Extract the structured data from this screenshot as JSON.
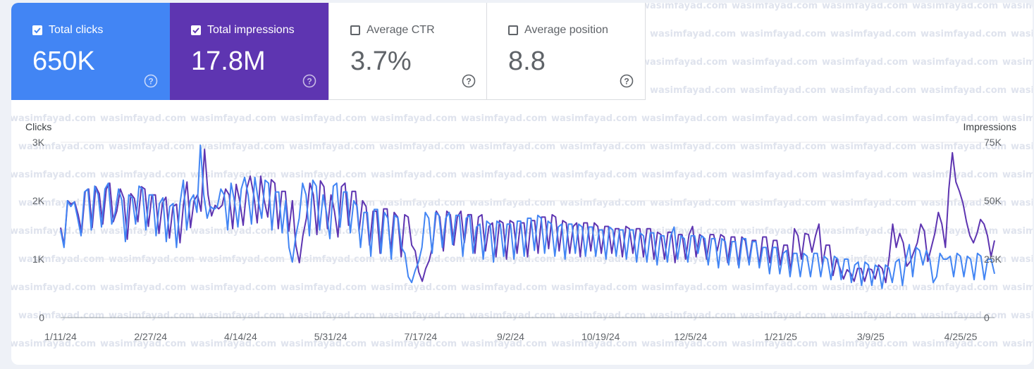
{
  "metrics": {
    "clicks": {
      "label": "Total clicks",
      "value": "650K",
      "checked": true,
      "color": "#4285f4"
    },
    "impressions": {
      "label": "Total impressions",
      "value": "17.8M",
      "checked": true,
      "color": "#5e35b1"
    },
    "ctr": {
      "label": "Average CTR",
      "value": "3.7%",
      "checked": false
    },
    "position": {
      "label": "Average position",
      "value": "8.8",
      "checked": false
    }
  },
  "watermark": "wasimfayad.com",
  "chart_data": {
    "type": "line",
    "ylabel_left": "Clicks",
    "ylabel_right": "Impressions",
    "yticks_left": [
      "0",
      "1K",
      "2K",
      "3K"
    ],
    "yticks_right": [
      "0",
      "25K",
      "50K",
      "75K"
    ],
    "ylim_left": [
      0,
      3000
    ],
    "ylim_right": [
      0,
      75000
    ],
    "xticks": [
      "1/11/24",
      "2/27/24",
      "4/14/24",
      "5/31/24",
      "7/17/24",
      "9/2/24",
      "10/19/24",
      "12/5/24",
      "1/21/25",
      "3/9/25",
      "4/25/25"
    ],
    "x_start": "1/11/24",
    "x_end": "5/16/25",
    "grid": true,
    "series": [
      {
        "name": "Clicks",
        "axis": "left",
        "color": "#4285f4",
        "values": [
          1500,
          1200,
          2000,
          1900,
          1980,
          1700,
          1400,
          2150,
          2200,
          1500,
          2250,
          2100,
          1550,
          2200,
          2300,
          1600,
          1800,
          2200,
          2000,
          1300,
          2100,
          2050,
          1600,
          2250,
          2200,
          1500,
          2100,
          2100,
          1400,
          1950,
          2050,
          1300,
          1900,
          1950,
          1200,
          1950,
          2350,
          1500,
          2000,
          2100,
          1800,
          2950,
          2100,
          1700,
          1900,
          1850,
          1900,
          2200,
          2100,
          1500,
          2300,
          2000,
          1550,
          2200,
          2400,
          2100,
          1600,
          2400,
          2000,
          1700,
          2350,
          2300,
          1500,
          2150,
          2150,
          1450,
          2000,
          1200,
          950,
          1400,
          1700,
          2300,
          2100,
          1400,
          2350,
          2250,
          1500,
          2100,
          1800,
          1350,
          2250,
          2300,
          1550,
          2150,
          2150,
          1450,
          2000,
          1900,
          1200,
          1800,
          1800,
          1050,
          1850,
          1850,
          1100,
          1800,
          1700,
          1000,
          1750,
          1700,
          1200,
          1100,
          700,
          600,
          800,
          950,
          1200,
          1800,
          1700,
          1100,
          1800,
          1750,
          1200,
          1700,
          1800,
          1250,
          1750,
          1750,
          1050,
          1700,
          1750,
          1100,
          1550,
          1600,
          1000,
          1650,
          1600,
          950,
          1650,
          1600,
          1050,
          1600,
          1600,
          1000,
          1650,
          1650,
          1050,
          1700,
          1700,
          1150,
          1750,
          1700,
          1100,
          1650,
          1600,
          1050,
          1550,
          1600,
          1000,
          1600,
          1600,
          1100,
          1600,
          1550,
          1050,
          1550,
          1550,
          1050,
          1500,
          1500,
          1000,
          1550,
          1500,
          1050,
          1500,
          1500,
          1000,
          1500,
          1500,
          950,
          1450,
          1400,
          950,
          1450,
          1450,
          900,
          1400,
          1400,
          950,
          1400,
          1550,
          1000,
          1400,
          1350,
          950,
          1400,
          1400,
          1100,
          1400,
          1350,
          900,
          1350,
          1350,
          850,
          1350,
          1300,
          900,
          1300,
          1300,
          850,
          1350,
          1350,
          900,
          1300,
          1300,
          850,
          1200,
          1200,
          750,
          1200,
          1200,
          750,
          1100,
          1150,
          700,
          1100,
          1100,
          700,
          1100,
          1050,
          700,
          1100,
          1100,
          700,
          1050,
          1000,
          650,
          1050,
          1000,
          650,
          1000,
          1000,
          600,
          900,
          950,
          550,
          950,
          900,
          550,
          900,
          850,
          500,
          900,
          850,
          600,
          950,
          1000,
          550,
          1000,
          1250,
          700,
          1200,
          1150,
          900,
          1150,
          1000,
          600,
          700,
          1100,
          1000,
          1000,
          1050,
          700,
          1100,
          1050,
          700,
          1050,
          1000,
          650,
          1100,
          1050,
          650,
          1000,
          1000,
          750
        ]
      },
      {
        "name": "Impressions",
        "axis": "right",
        "color": "#5e35b1",
        "values": [
          38500,
          31000,
          50000,
          48500,
          49500,
          44000,
          36500,
          54000,
          55000,
          38500,
          56000,
          53000,
          40000,
          55000,
          57500,
          41000,
          45500,
          55000,
          51000,
          33500,
          53000,
          51000,
          41000,
          56000,
          55000,
          39000,
          52500,
          52500,
          36000,
          49000,
          51500,
          34000,
          47500,
          48500,
          32000,
          48500,
          58000,
          38500,
          50000,
          52500,
          45500,
          72000,
          52500,
          43500,
          48000,
          46500,
          48000,
          55000,
          52500,
          38000,
          57000,
          50000,
          39500,
          55000,
          60500,
          52500,
          40500,
          60500,
          50000,
          43000,
          59000,
          57500,
          38000,
          54000,
          54000,
          37000,
          50000,
          31000,
          23500,
          35000,
          42500,
          57500,
          52500,
          35500,
          58500,
          56000,
          38000,
          52500,
          45500,
          34500,
          56000,
          57500,
          39500,
          54000,
          54000,
          37000,
          50000,
          47500,
          31000,
          45500,
          45500,
          27500,
          46500,
          46500,
          28500,
          45000,
          43000,
          26000,
          44000,
          43000,
          31000,
          28500,
          19500,
          15500,
          21000,
          24500,
          31000,
          45500,
          43000,
          28500,
          45500,
          44000,
          31000,
          43000,
          45500,
          32000,
          44000,
          44000,
          27500,
          43000,
          44000,
          28500,
          39000,
          40500,
          26000,
          41500,
          40500,
          25000,
          41500,
          40500,
          27500,
          40500,
          40500,
          26000,
          41500,
          41500,
          27500,
          43000,
          43000,
          29500,
          44000,
          43000,
          28500,
          41500,
          40500,
          27500,
          39000,
          40500,
          26000,
          40500,
          40500,
          28500,
          40500,
          39000,
          27500,
          39000,
          39000,
          27500,
          38000,
          38000,
          26000,
          39000,
          38000,
          27500,
          38000,
          38000,
          26000,
          38000,
          38000,
          25000,
          36500,
          35500,
          25000,
          36500,
          36500,
          23500,
          35500,
          35500,
          25000,
          35500,
          39000,
          26000,
          35500,
          34500,
          25000,
          35500,
          35500,
          28500,
          35500,
          34500,
          23500,
          34500,
          34500,
          22500,
          34500,
          33000,
          23500,
          33000,
          33000,
          22500,
          34500,
          34500,
          23500,
          33000,
          33000,
          22500,
          31000,
          31000,
          20000,
          38000,
          35000,
          25000,
          36000,
          35500,
          28000,
          35000,
          40000,
          22500,
          31000,
          31000,
          18000,
          25000,
          21000,
          16500,
          20500,
          19000,
          15500,
          21000,
          21000,
          15500,
          21000,
          20500,
          16500,
          22500,
          21000,
          15000,
          26000,
          40000,
          30000,
          36000,
          32000,
          22000,
          24000,
          28000,
          32000,
          40000,
          37000,
          24000,
          30000,
          36000,
          45000,
          40000,
          30000,
          55000,
          70500,
          58000,
          54000,
          49000,
          41000,
          35000,
          32000,
          36000,
          42000,
          40000,
          35000,
          26000,
          33000
        ]
      }
    ]
  }
}
